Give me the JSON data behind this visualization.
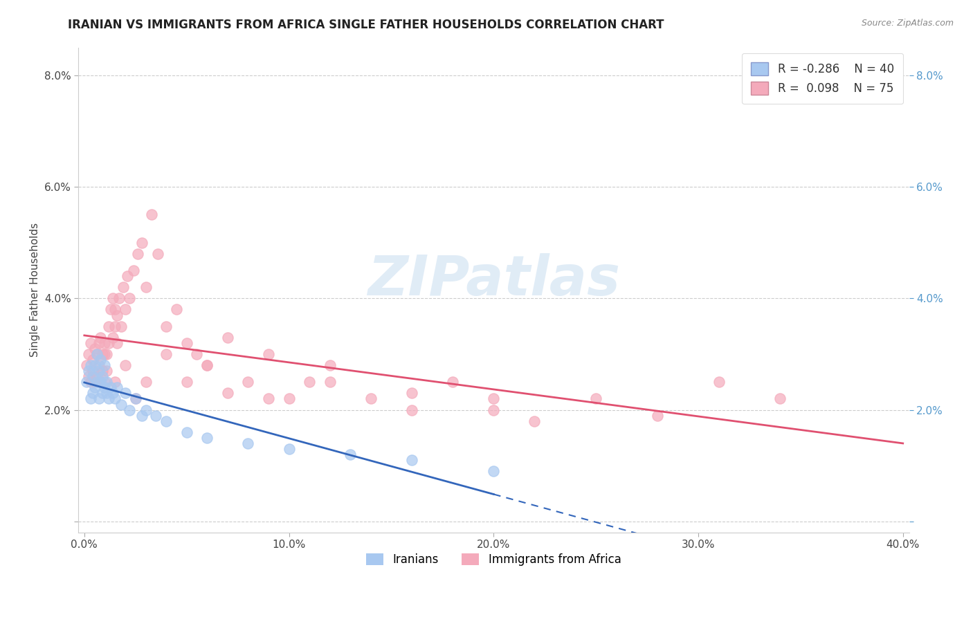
{
  "title": "IRANIAN VS IMMIGRANTS FROM AFRICA SINGLE FATHER HOUSEHOLDS CORRELATION CHART",
  "source": "Source: ZipAtlas.com",
  "ylabel": "Single Father Households",
  "xlabel": "",
  "xlim": [
    -0.003,
    0.403
  ],
  "ylim": [
    -0.002,
    0.085
  ],
  "yticks": [
    0.0,
    0.02,
    0.04,
    0.06,
    0.08
  ],
  "ytick_labels": [
    "",
    "2.0%",
    "4.0%",
    "6.0%",
    "8.0%"
  ],
  "xticks": [
    0.0,
    0.1,
    0.2,
    0.3,
    0.4
  ],
  "xtick_labels": [
    "0.0%",
    "10.0%",
    "20.0%",
    "30.0%",
    "40.0%"
  ],
  "legend_labels": [
    "Iranians",
    "Immigrants from Africa"
  ],
  "legend_r_blue": "R = -0.286",
  "legend_n_blue": "N = 40",
  "legend_r_pink": "R =  0.098",
  "legend_n_pink": "N = 75",
  "blue_color": "#a8c8f0",
  "pink_color": "#f4aabb",
  "blue_line_color": "#3366bb",
  "pink_line_color": "#e05070",
  "watermark_text": "ZIPatlas",
  "iranians_x": [
    0.001,
    0.002,
    0.003,
    0.003,
    0.004,
    0.004,
    0.005,
    0.005,
    0.006,
    0.006,
    0.007,
    0.007,
    0.008,
    0.008,
    0.009,
    0.009,
    0.01,
    0.01,
    0.011,
    0.011,
    0.012,
    0.013,
    0.014,
    0.015,
    0.016,
    0.018,
    0.02,
    0.022,
    0.025,
    0.028,
    0.03,
    0.035,
    0.04,
    0.05,
    0.06,
    0.08,
    0.1,
    0.13,
    0.16,
    0.2
  ],
  "iranians_y": [
    0.025,
    0.027,
    0.022,
    0.028,
    0.023,
    0.026,
    0.024,
    0.028,
    0.025,
    0.03,
    0.022,
    0.027,
    0.025,
    0.029,
    0.023,
    0.026,
    0.024,
    0.028,
    0.023,
    0.025,
    0.022,
    0.024,
    0.023,
    0.022,
    0.024,
    0.021,
    0.023,
    0.02,
    0.022,
    0.019,
    0.02,
    0.019,
    0.018,
    0.016,
    0.015,
    0.014,
    0.013,
    0.012,
    0.011,
    0.009
  ],
  "africa_x": [
    0.001,
    0.002,
    0.002,
    0.003,
    0.003,
    0.004,
    0.004,
    0.005,
    0.005,
    0.006,
    0.006,
    0.007,
    0.007,
    0.008,
    0.008,
    0.009,
    0.009,
    0.01,
    0.01,
    0.011,
    0.011,
    0.012,
    0.012,
    0.013,
    0.014,
    0.014,
    0.015,
    0.015,
    0.016,
    0.016,
    0.017,
    0.018,
    0.019,
    0.02,
    0.021,
    0.022,
    0.024,
    0.026,
    0.028,
    0.03,
    0.033,
    0.036,
    0.04,
    0.045,
    0.05,
    0.055,
    0.06,
    0.07,
    0.08,
    0.09,
    0.1,
    0.11,
    0.12,
    0.14,
    0.16,
    0.18,
    0.2,
    0.22,
    0.25,
    0.28,
    0.31,
    0.34,
    0.01,
    0.015,
    0.02,
    0.025,
    0.03,
    0.04,
    0.05,
    0.06,
    0.07,
    0.09,
    0.12,
    0.16,
    0.2
  ],
  "africa_y": [
    0.028,
    0.026,
    0.03,
    0.025,
    0.032,
    0.027,
    0.029,
    0.025,
    0.031,
    0.026,
    0.03,
    0.028,
    0.032,
    0.025,
    0.033,
    0.027,
    0.03,
    0.025,
    0.032,
    0.027,
    0.03,
    0.035,
    0.032,
    0.038,
    0.033,
    0.04,
    0.035,
    0.038,
    0.032,
    0.037,
    0.04,
    0.035,
    0.042,
    0.038,
    0.044,
    0.04,
    0.045,
    0.048,
    0.05,
    0.042,
    0.055,
    0.048,
    0.035,
    0.038,
    0.032,
    0.03,
    0.028,
    0.033,
    0.025,
    0.03,
    0.022,
    0.025,
    0.028,
    0.022,
    0.02,
    0.025,
    0.022,
    0.018,
    0.022,
    0.019,
    0.025,
    0.022,
    0.03,
    0.025,
    0.028,
    0.022,
    0.025,
    0.03,
    0.025,
    0.028,
    0.023,
    0.022,
    0.025,
    0.023,
    0.02
  ]
}
